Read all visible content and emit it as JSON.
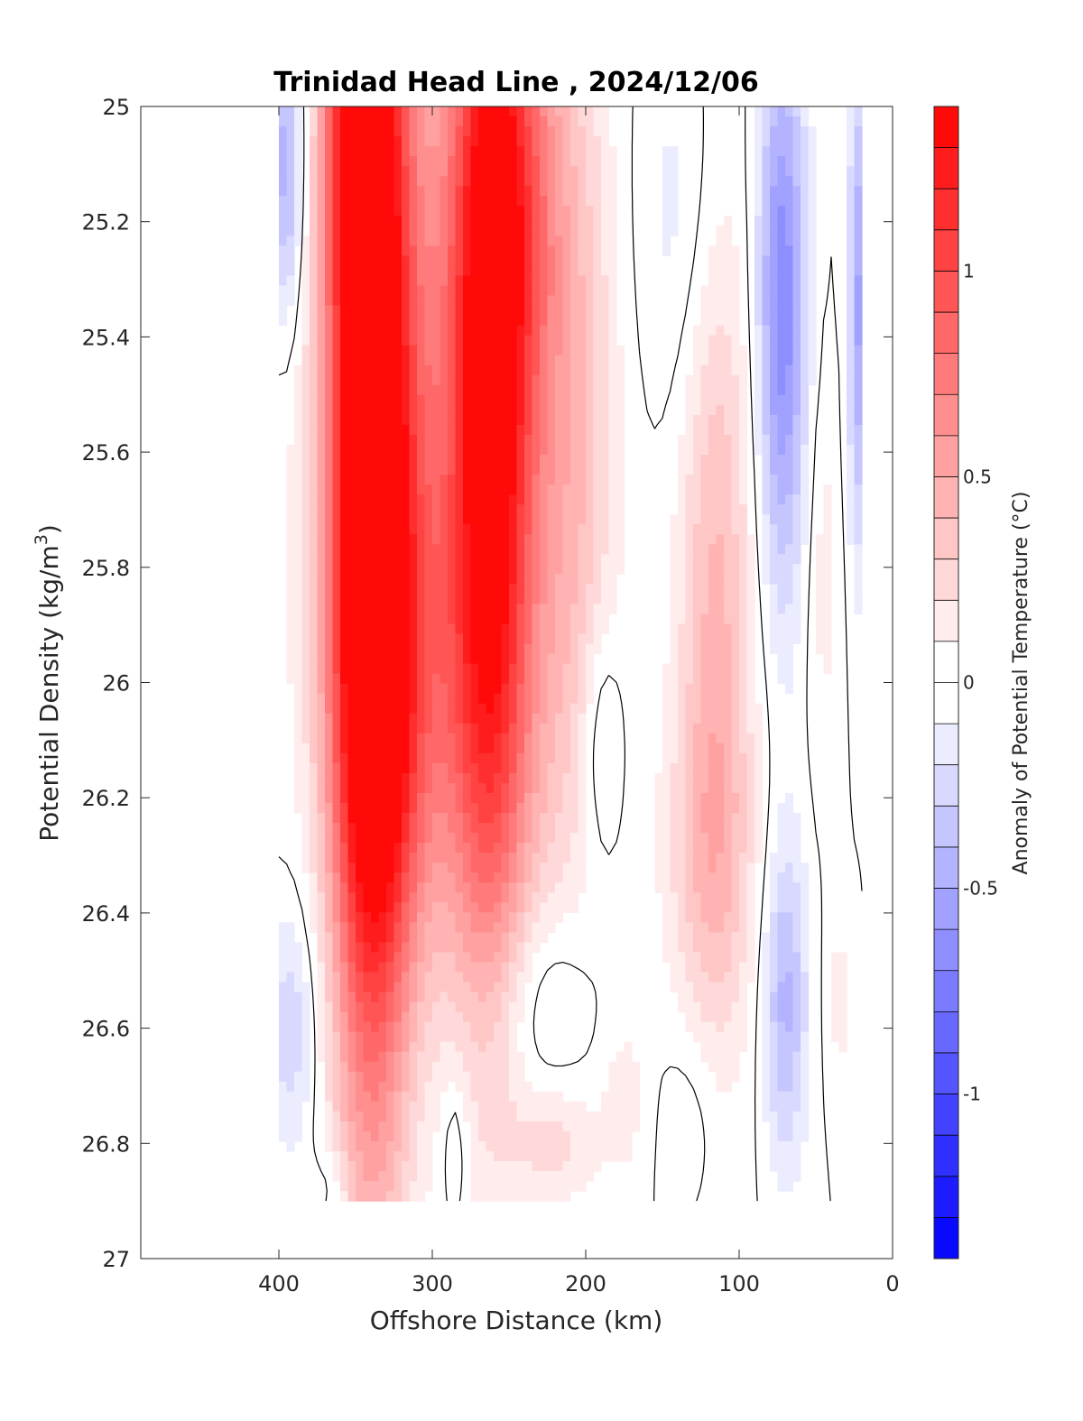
{
  "chart_data": {
    "type": "heatmap",
    "title": "Trinidad Head Line , 2024/12/06",
    "xlabel": "Offshore Distance (km)",
    "ylabel_main": "Potential Density (kg/m",
    "ylabel_sup": "3",
    "ylabel_close": ")",
    "xlim": [
      490,
      0
    ],
    "ylim": [
      27,
      25
    ],
    "x_reversed": true,
    "y_reversed": true,
    "xticks": [
      400,
      300,
      200,
      100,
      0
    ],
    "xtick_labels": [
      "400",
      "300",
      "200",
      "100",
      "0"
    ],
    "yticks": [
      25,
      25.2,
      25.4,
      25.6,
      25.8,
      26,
      26.2,
      26.4,
      26.6,
      26.8,
      27
    ],
    "ytick_labels": [
      "25",
      "25.2",
      "25.4",
      "25.6",
      "25.8",
      "26",
      "26.2",
      "26.4",
      "26.6",
      "26.8",
      "27"
    ],
    "colorbar": {
      "label": "Anomaly of Potential Temperature (°C)",
      "range": [
        -1.4,
        1.4
      ],
      "step": 0.1,
      "ticks": [
        1,
        0.5,
        0,
        -0.5,
        -1
      ],
      "tick_labels": [
        "1",
        "0.5",
        "0",
        "-0.5",
        "-1"
      ],
      "colormap": "blue-white-red",
      "positive_color": "#ff0000",
      "negative_color": "#0000ff",
      "neutral_color": "#ffffff"
    },
    "grid": false,
    "zero_contour": true,
    "data_x_range": [
      400,
      20
    ],
    "data_y_range": [
      25,
      26.9
    ],
    "features": [
      {
        "x": 340,
        "y": 25.5,
        "sx": 18,
        "sy": 0.9,
        "value": 1.45
      },
      {
        "x": 335,
        "y": 26.05,
        "sx": 22,
        "sy": 0.35,
        "value": 0.6
      },
      {
        "x": 262,
        "y": 25.55,
        "sx": 17,
        "sy": 0.65,
        "value": 0.9
      },
      {
        "x": 270,
        "y": 26.05,
        "sx": 38,
        "sy": 0.35,
        "value": 0.45
      },
      {
        "x": 300,
        "y": 25.45,
        "sx": 55,
        "sy": 0.55,
        "value": 0.4
      },
      {
        "x": 250,
        "y": 25.15,
        "sx": 25,
        "sy": 0.35,
        "value": 0.7
      },
      {
        "x": 350,
        "y": 25.05,
        "sx": 14,
        "sy": 0.25,
        "value": 0.6
      },
      {
        "x": 205,
        "y": 25.6,
        "sx": 18,
        "sy": 0.5,
        "value": 0.25
      },
      {
        "x": 115,
        "y": 25.85,
        "sx": 17,
        "sy": 0.55,
        "value": 0.42
      },
      {
        "x": 120,
        "y": 26.3,
        "sx": 22,
        "sy": 0.2,
        "value": 0.22
      },
      {
        "x": 45,
        "y": 25.8,
        "sx": 8,
        "sy": 0.25,
        "value": 0.15
      },
      {
        "x": 35,
        "y": 26.55,
        "sx": 6,
        "sy": 0.12,
        "value": 0.15
      },
      {
        "x": 220,
        "y": 26.8,
        "sx": 20,
        "sy": 0.07,
        "value": 0.22
      },
      {
        "x": 175,
        "y": 26.72,
        "sx": 10,
        "sy": 0.1,
        "value": 0.15
      },
      {
        "x": 395,
        "y": 25.1,
        "sx": 8,
        "sy": 0.2,
        "value": -0.55
      },
      {
        "x": 72,
        "y": 25.35,
        "sx": 11,
        "sy": 0.35,
        "value": -0.7
      },
      {
        "x": 20,
        "y": 25.35,
        "sx": 6,
        "sy": 0.3,
        "value": -0.6
      },
      {
        "x": 135,
        "y": 25.2,
        "sx": 22,
        "sy": 0.25,
        "value": -0.18
      },
      {
        "x": 70,
        "y": 26.55,
        "sx": 10,
        "sy": 0.2,
        "value": -0.45
      },
      {
        "x": 190,
        "y": 26.1,
        "sx": 10,
        "sy": 0.15,
        "value": -0.25
      },
      {
        "x": 392,
        "y": 26.6,
        "sx": 12,
        "sy": 0.15,
        "value": -0.3
      },
      {
        "x": 230,
        "y": 26.55,
        "sx": 25,
        "sy": 0.12,
        "value": -0.2
      },
      {
        "x": 130,
        "y": 26.75,
        "sx": 14,
        "sy": 0.12,
        "value": -0.12
      },
      {
        "x": 365,
        "y": 26.88,
        "sx": 10,
        "sy": 0.05,
        "value": -0.15
      },
      {
        "x": 285,
        "y": 26.8,
        "sx": 6,
        "sy": 0.1,
        "value": -0.18
      }
    ]
  }
}
